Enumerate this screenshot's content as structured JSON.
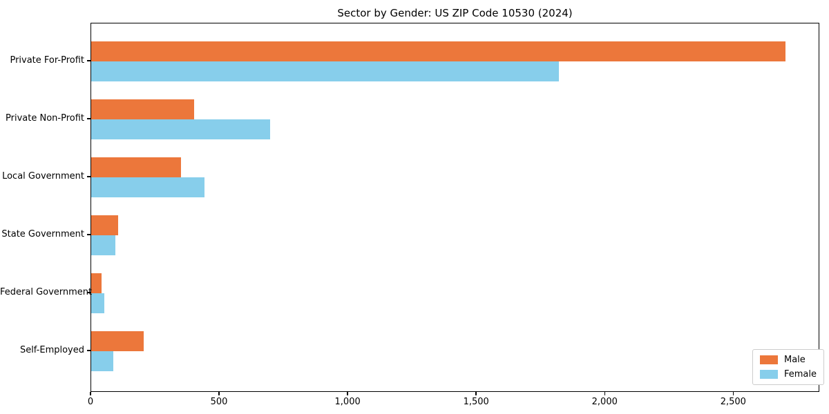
{
  "title": "Sector by Gender: US ZIP Code 10530 (2024)",
  "colors": {
    "male": "#EC773B",
    "female": "#87CEEB",
    "axis": "#000000",
    "legend_border": "#cccccc",
    "background": "#ffffff"
  },
  "legend": {
    "items": [
      {
        "label": "Male",
        "color": "#EC773B"
      },
      {
        "label": "Female",
        "color": "#87CEEB"
      }
    ],
    "position": "lower right"
  },
  "chart_data": {
    "type": "bar",
    "orientation": "horizontal",
    "title": "Sector by Gender: US ZIP Code 10530 (2024)",
    "categories": [
      "Private For-Profit",
      "Private Non-Profit",
      "Local Government",
      "State Government",
      "Federal Government",
      "Self-Employed"
    ],
    "series": [
      {
        "name": "Male",
        "color": "#EC773B",
        "values": [
          2700,
          400,
          350,
          105,
          40,
          205
        ]
      },
      {
        "name": "Female",
        "color": "#87CEEB",
        "values": [
          1820,
          695,
          440,
          95,
          50,
          85
        ]
      }
    ],
    "xlabel": "",
    "ylabel": "",
    "xlim": [
      0,
      2835
    ],
    "xticks": [
      0,
      500,
      1000,
      1500,
      2000,
      2500
    ],
    "xtick_labels": [
      "0",
      "500",
      "1,000",
      "1,500",
      "2,000",
      "2,500"
    ],
    "grid": false,
    "legend_position": "lower right"
  }
}
